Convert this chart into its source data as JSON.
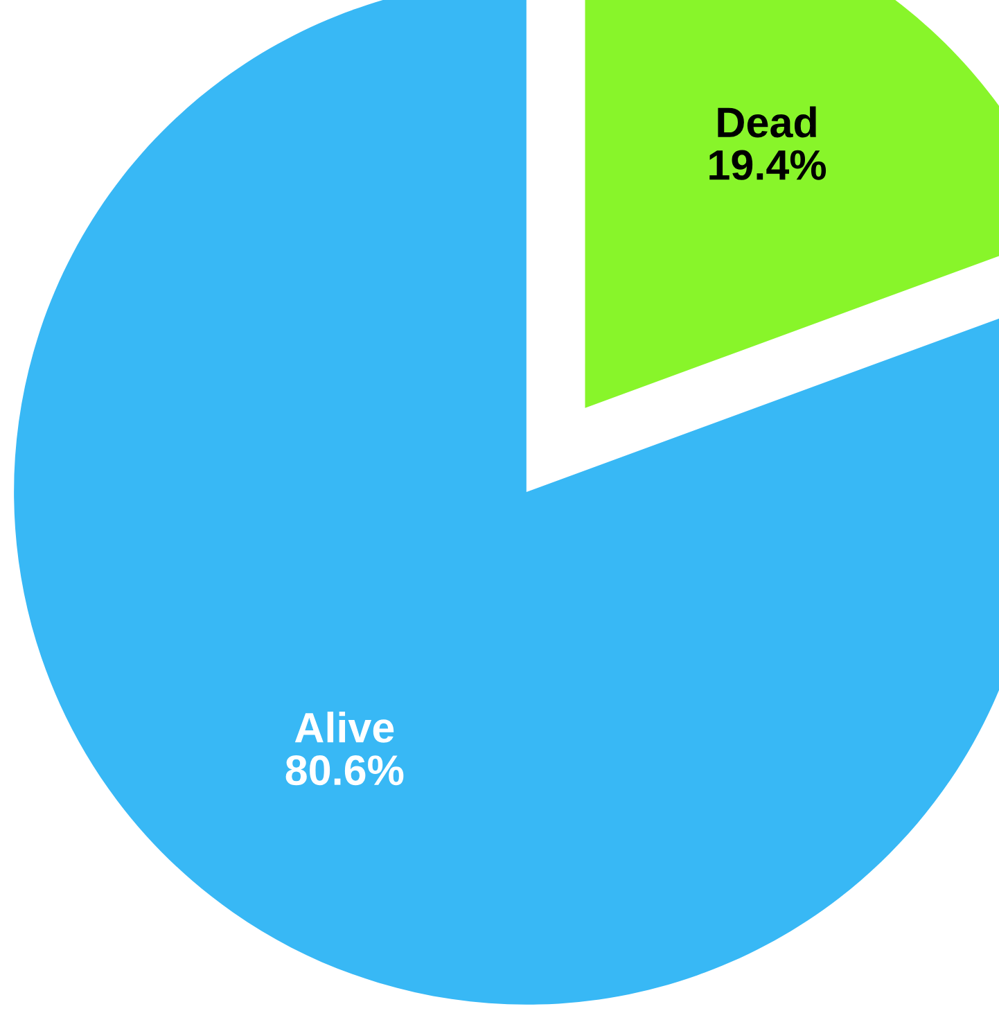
{
  "chart_data": {
    "type": "pie",
    "categories": [
      "Dead",
      "Alive"
    ],
    "values": [
      19.4,
      80.6
    ],
    "colors": [
      "#88f52a",
      "#38b8f5"
    ],
    "value_labels": [
      "19.4%",
      "80.6%"
    ]
  }
}
